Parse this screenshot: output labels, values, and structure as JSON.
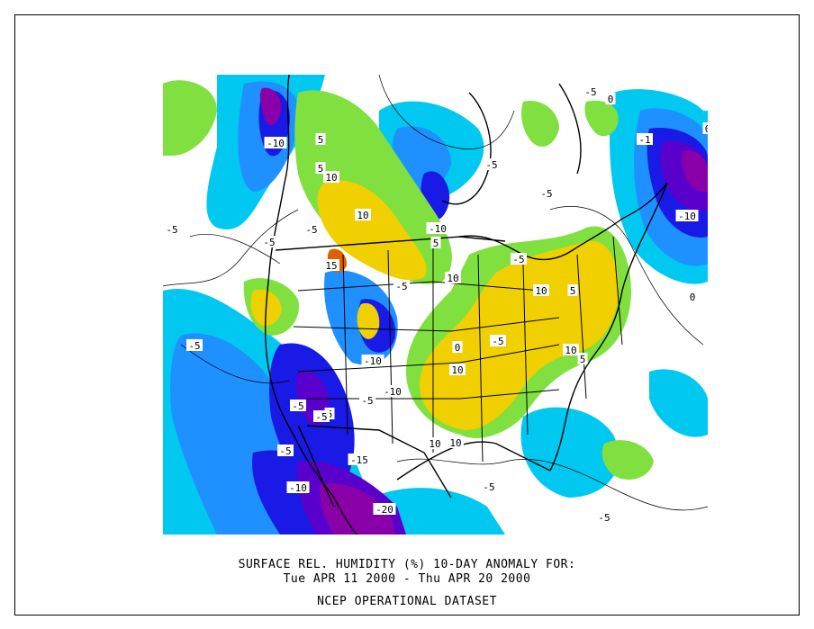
{
  "title": {
    "line1": "SURFACE REL. HUMIDITY (%)   10-DAY ANOMALY FOR:",
    "line2": "Tue APR 11 2000 - Thu APR 20 2000",
    "line3": "NCEP OPERATIONAL DATASET"
  },
  "palette": {
    "very_dry": "#8a00a8",
    "dry2": "#5a00cc",
    "dry1": "#1a1ae6",
    "slightly_dry": "#1e90ff",
    "near_dry": "#00c8f0",
    "neutral": "#ffffff",
    "near_moist": "#80e040",
    "moist": "#f0d000",
    "very_moist": "#e06000"
  },
  "contour_labels": [
    "-10",
    "5",
    "5",
    "10",
    "10",
    "-5",
    "-5",
    "15",
    "-5",
    "-10",
    "5",
    "10",
    "-5",
    "10",
    "-5",
    "-5",
    "0",
    "10",
    "-10",
    "-10",
    "-5",
    "-5",
    "5",
    "10",
    "-5",
    "-10",
    "-15",
    "-20",
    "-5",
    "-5",
    "10",
    "10",
    "5",
    "0",
    "-5",
    "-5",
    "-10",
    "-5",
    "0",
    "0",
    "-1",
    "-5",
    "-5",
    "5"
  ]
}
